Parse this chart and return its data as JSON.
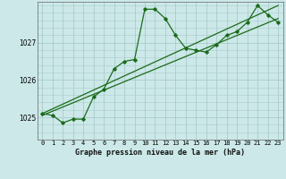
{
  "title": "Graphe pression niveau de la mer (hPa)",
  "bg_color": "#cce8e8",
  "grid_color": "#aacccc",
  "line_color": "#1a6b1a",
  "xlim": [
    -0.5,
    23.5
  ],
  "ylim": [
    1024.4,
    1028.1
  ],
  "yticks": [
    1025,
    1026,
    1027
  ],
  "line1_x": [
    0,
    1,
    2,
    3,
    4,
    5,
    6,
    7,
    8,
    9,
    10,
    11,
    12,
    13,
    14,
    15,
    16,
    17,
    18,
    19,
    20,
    21,
    22,
    23
  ],
  "line1_y": [
    1025.1,
    1025.05,
    1024.85,
    1024.95,
    1024.95,
    1025.55,
    1025.75,
    1026.3,
    1026.5,
    1026.55,
    1027.9,
    1027.9,
    1027.65,
    1027.2,
    1026.85,
    1026.8,
    1026.75,
    1026.95,
    1027.2,
    1027.3,
    1027.55,
    1028.0,
    1027.75,
    1027.55
  ],
  "line2_x": [
    0,
    23
  ],
  "line2_y": [
    1025.05,
    1027.65
  ],
  "line3_x": [
    0,
    23
  ],
  "line3_y": [
    1025.1,
    1028.0
  ],
  "xlabel_fontsize": 6.0,
  "tick_fontsize": 5.0,
  "ytick_fontsize": 5.5
}
